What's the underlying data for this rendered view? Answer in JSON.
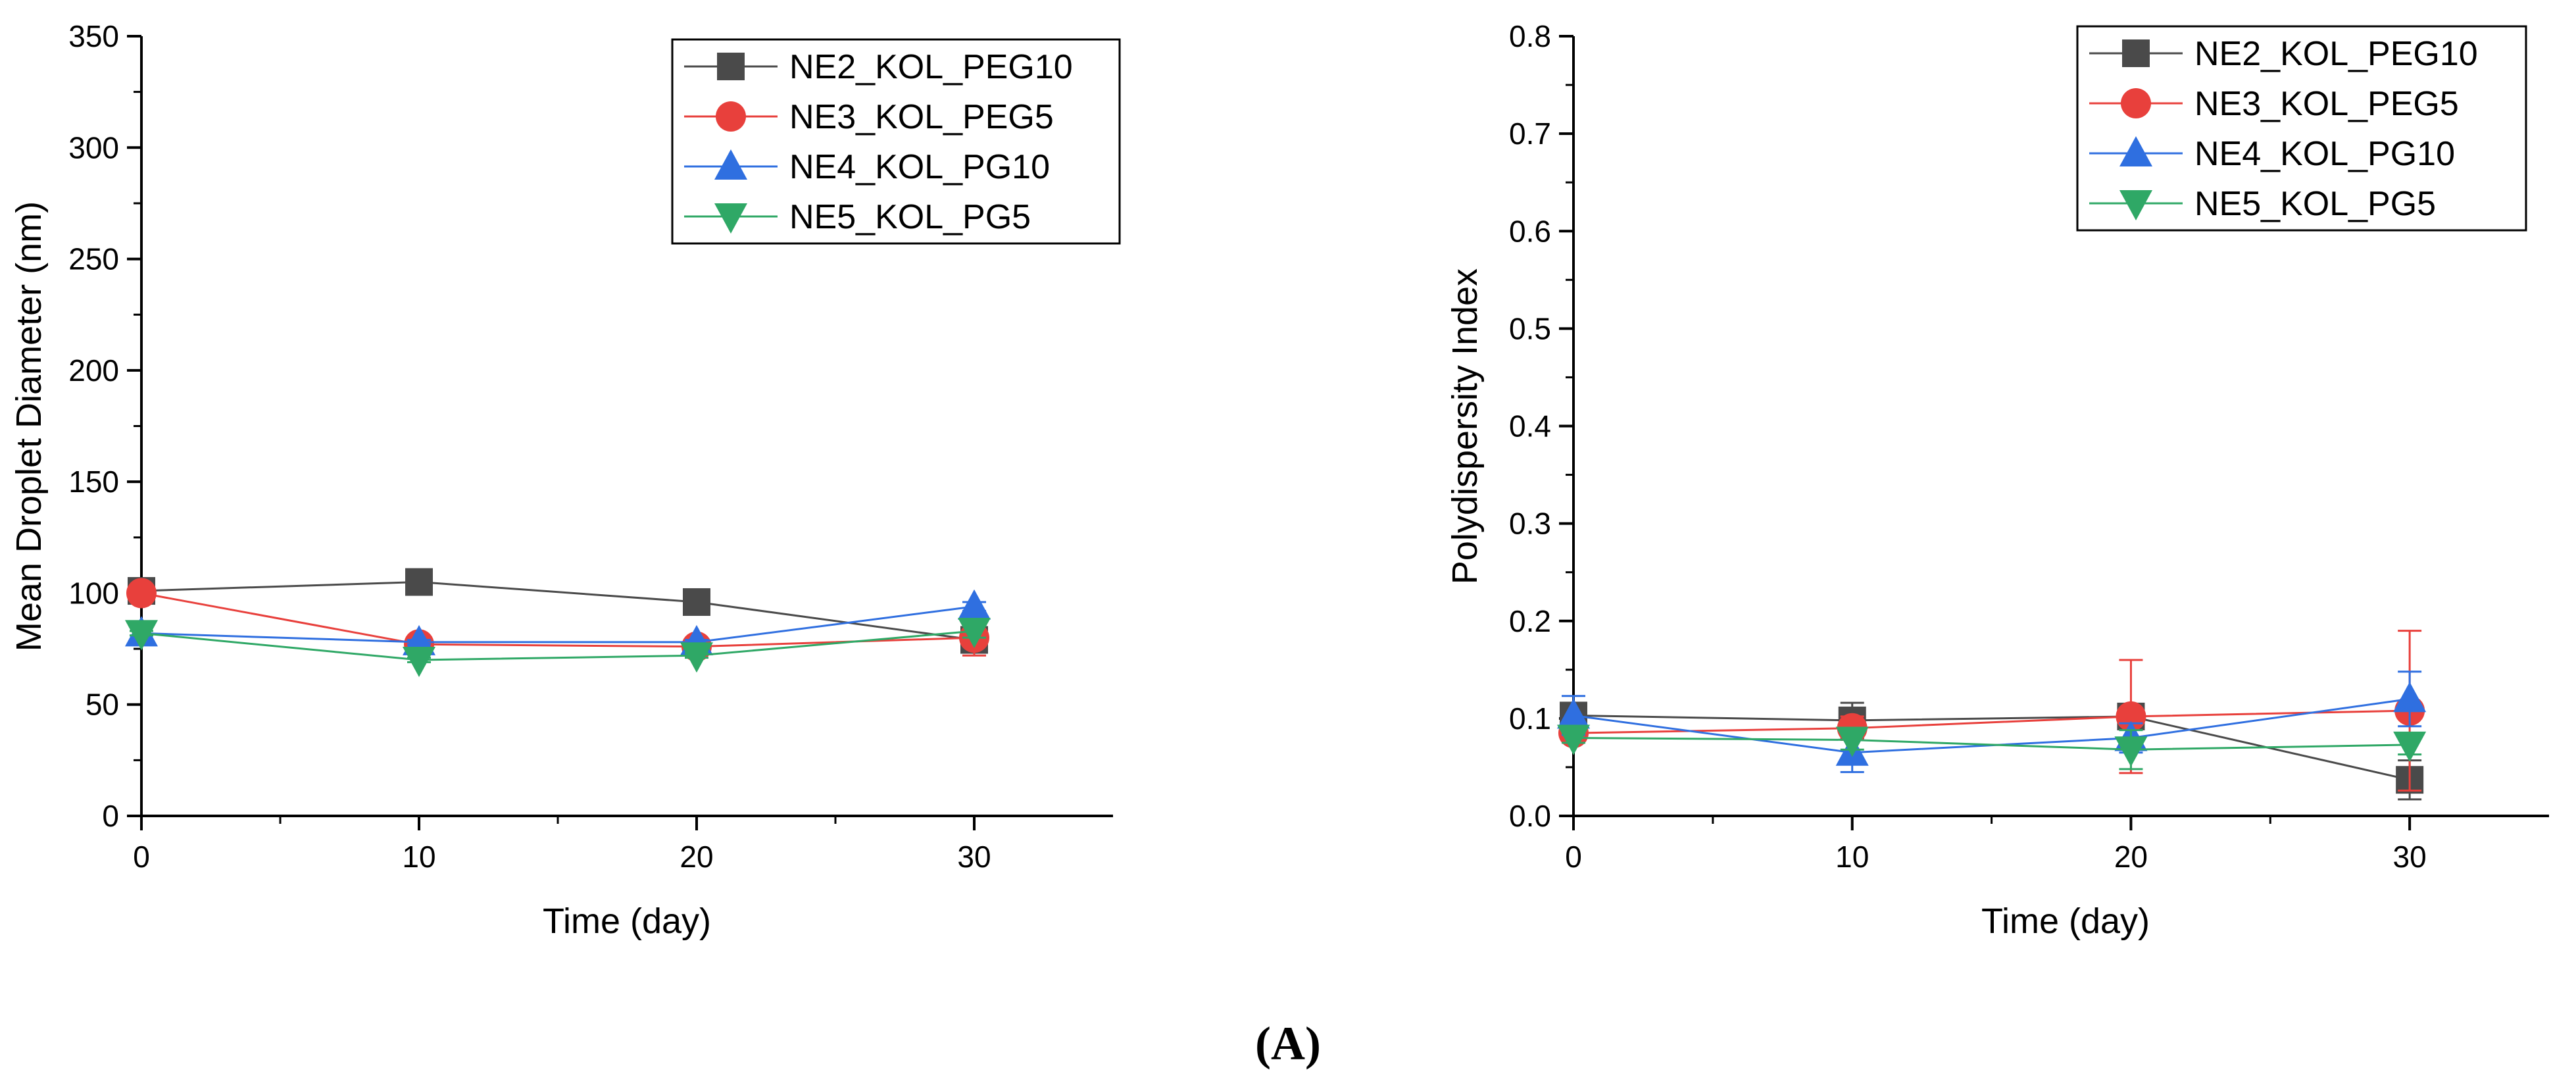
{
  "figure_label": "(A)",
  "colors": {
    "NE2_KOL_PEG10": "#4a4a4a",
    "NE3_KOL_PEG5": "#e8403c",
    "NE4_KOL_PG10": "#2f6fe0",
    "NE5_KOL_PG5": "#2fa866"
  },
  "chart_data": [
    {
      "type": "line",
      "title": "",
      "xlabel": "Time (day)",
      "ylabel": "Mean Droplet Diameter (nm)",
      "xlim": [
        0,
        35
      ],
      "ylim": [
        0,
        350
      ],
      "x_ticks": [
        0,
        10,
        20,
        30
      ],
      "x_tick_labels": [
        "0",
        "10",
        "20",
        "30"
      ],
      "y_ticks": [
        0,
        50,
        100,
        150,
        200,
        250,
        300,
        350
      ],
      "y_tick_labels": [
        "0",
        "50",
        "100",
        "150",
        "200",
        "250",
        "300",
        "350"
      ],
      "legend_position": "top-right",
      "grid": false,
      "series": [
        {
          "name": "NE2_KOL_PEG10",
          "marker": "square",
          "x": [
            0,
            10,
            20,
            30
          ],
          "values": [
            101,
            105,
            96,
            79
          ],
          "errors": [
            1,
            1,
            2,
            2
          ]
        },
        {
          "name": "NE3_KOL_PEG5",
          "marker": "circle",
          "x": [
            0,
            10,
            20,
            30
          ],
          "values": [
            100,
            77,
            76,
            80
          ],
          "errors": [
            2,
            2,
            2,
            8
          ]
        },
        {
          "name": "NE4_KOL_PG10",
          "marker": "triangle-up",
          "x": [
            0,
            10,
            20,
            30
          ],
          "values": [
            82,
            78,
            78,
            94
          ],
          "errors": [
            1,
            1,
            1,
            2
          ]
        },
        {
          "name": "NE5_KOL_PG5",
          "marker": "triangle-down",
          "x": [
            0,
            10,
            20,
            30
          ],
          "values": [
            82,
            70,
            72,
            83
          ],
          "errors": [
            1,
            1,
            1,
            3
          ]
        }
      ]
    },
    {
      "type": "line",
      "title": "",
      "xlabel": "Time (day)",
      "ylabel": "Polydispersity Index",
      "xlim": [
        0,
        35
      ],
      "ylim": [
        0,
        0.8
      ],
      "x_ticks": [
        0,
        10,
        20,
        30
      ],
      "x_tick_labels": [
        "0",
        "10",
        "20",
        "30"
      ],
      "y_ticks": [
        0,
        0.1,
        0.2,
        0.3,
        0.4,
        0.5,
        0.6,
        0.7,
        0.8
      ],
      "y_tick_labels": [
        "0.0",
        "0.1",
        "0.2",
        "0.3",
        "0.4",
        "0.5",
        "0.6",
        "0.7",
        "0.8"
      ],
      "legend_position": "top-right",
      "grid": false,
      "series": [
        {
          "name": "NE2_KOL_PEG10",
          "marker": "square",
          "x": [
            0,
            10,
            20,
            30
          ],
          "values": [
            0.103,
            0.098,
            0.102,
            0.037
          ],
          "errors": [
            0.01,
            0.018,
            0.01,
            0.02
          ]
        },
        {
          "name": "NE3_KOL_PEG5",
          "marker": "circle",
          "x": [
            0,
            10,
            20,
            30
          ],
          "values": [
            0.085,
            0.09,
            0.102,
            0.108
          ],
          "errors": [
            0.008,
            0.012,
            0.058,
            0.082
          ]
        },
        {
          "name": "NE4_KOL_PG10",
          "marker": "triangle-up",
          "x": [
            0,
            10,
            20,
            30
          ],
          "values": [
            0.103,
            0.065,
            0.08,
            0.12
          ],
          "errors": [
            0.02,
            0.02,
            0.015,
            0.028
          ]
        },
        {
          "name": "NE5_KOL_PG5",
          "marker": "triangle-down",
          "x": [
            0,
            10,
            20,
            30
          ],
          "values": [
            0.08,
            0.078,
            0.068,
            0.073
          ],
          "errors": [
            0.005,
            0.01,
            0.02,
            0.01
          ]
        }
      ]
    }
  ]
}
